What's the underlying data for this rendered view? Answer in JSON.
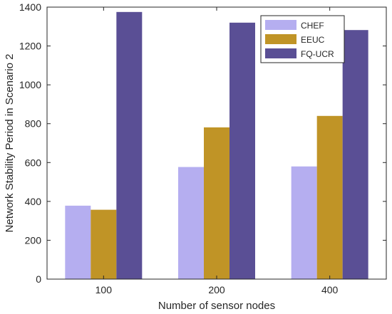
{
  "chart_data": {
    "type": "bar",
    "title": "",
    "xlabel": "Number of sensor nodes",
    "ylabel": "Network Stability Period in Scenario 2",
    "categories": [
      "100",
      "200",
      "400"
    ],
    "ylim": [
      0,
      1400
    ],
    "yticks": [
      0,
      200,
      400,
      600,
      800,
      1000,
      1200,
      1400
    ],
    "grid": false,
    "legend_position": "top-right",
    "series": [
      {
        "name": "CHEF",
        "color": "#b5aef0",
        "values": [
          378,
          577,
          580
        ]
      },
      {
        "name": "EEUC",
        "color": "#c09426",
        "values": [
          357,
          781,
          840
        ]
      },
      {
        "name": "FQ-UCR",
        "color": "#5a4f95",
        "values": [
          1375,
          1320,
          1282
        ]
      }
    ]
  }
}
